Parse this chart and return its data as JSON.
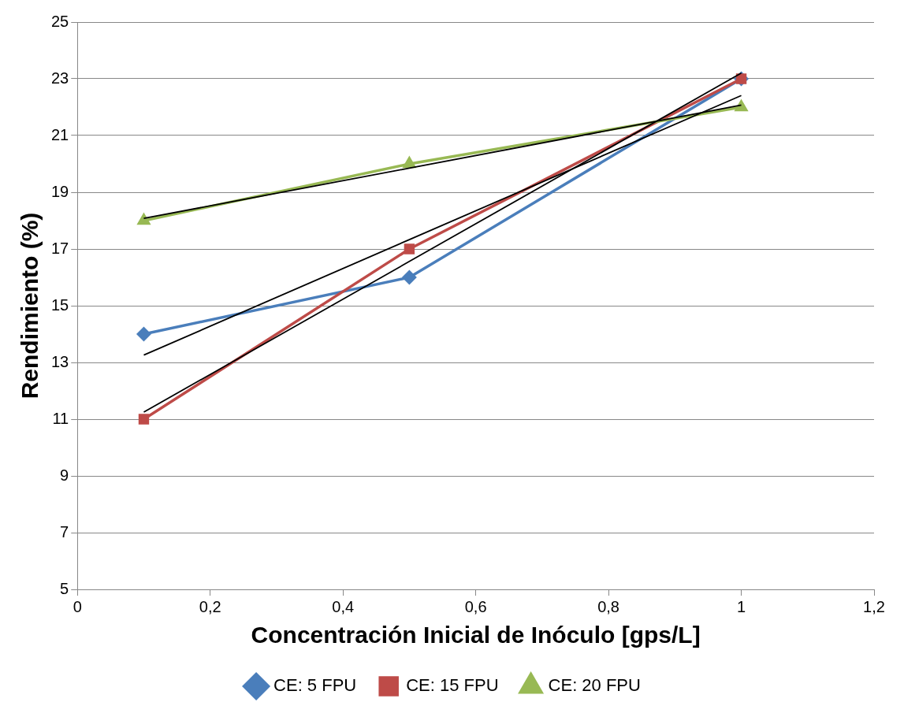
{
  "chart_data": {
    "type": "line",
    "xlabel": "Concentración Inicial de Inóculo [gps/L]",
    "ylabel": "Rendimiento (%)",
    "x": [
      0.1,
      0.5,
      1
    ],
    "series": [
      {
        "name": "CE: 5 FPU",
        "color": "#4a7ebb",
        "values": [
          14,
          16,
          23
        ],
        "marker": "diamond"
      },
      {
        "name": "CE: 15 FPU",
        "color": "#be4b48",
        "values": [
          11,
          17,
          23
        ],
        "marker": "square"
      },
      {
        "name": "CE: 20 FPU",
        "color": "#98b954",
        "values": [
          18,
          20,
          22
        ],
        "marker": "triangle"
      },
      {
        "color": "#000000",
        "values": [
          13.26,
          17.33,
          22.41
        ],
        "marker": "none"
      },
      {
        "color": "#000000",
        "values": [
          11.25,
          16.56,
          23.2
        ],
        "marker": "none"
      },
      {
        "color": "#000000",
        "values": [
          18.08,
          19.85,
          22.07
        ],
        "marker": "none"
      }
    ],
    "xlim": [
      0,
      1.2
    ],
    "xticks": [
      0,
      {
        "value": 0.2,
        "label": "0,2"
      },
      {
        "value": 0.4,
        "label": "0,4"
      },
      {
        "value": 0.6,
        "label": "0,6"
      },
      {
        "value": 0.8,
        "label": "0,8"
      },
      1,
      {
        "value": 1.2,
        "label": "1,2"
      }
    ],
    "ylim": [
      5,
      25
    ],
    "yticks": [
      5,
      7,
      9,
      11,
      13,
      15,
      17,
      19,
      21,
      23,
      25
    ],
    "grid": "y",
    "legend": "bottom",
    "line_style": "solid"
  }
}
